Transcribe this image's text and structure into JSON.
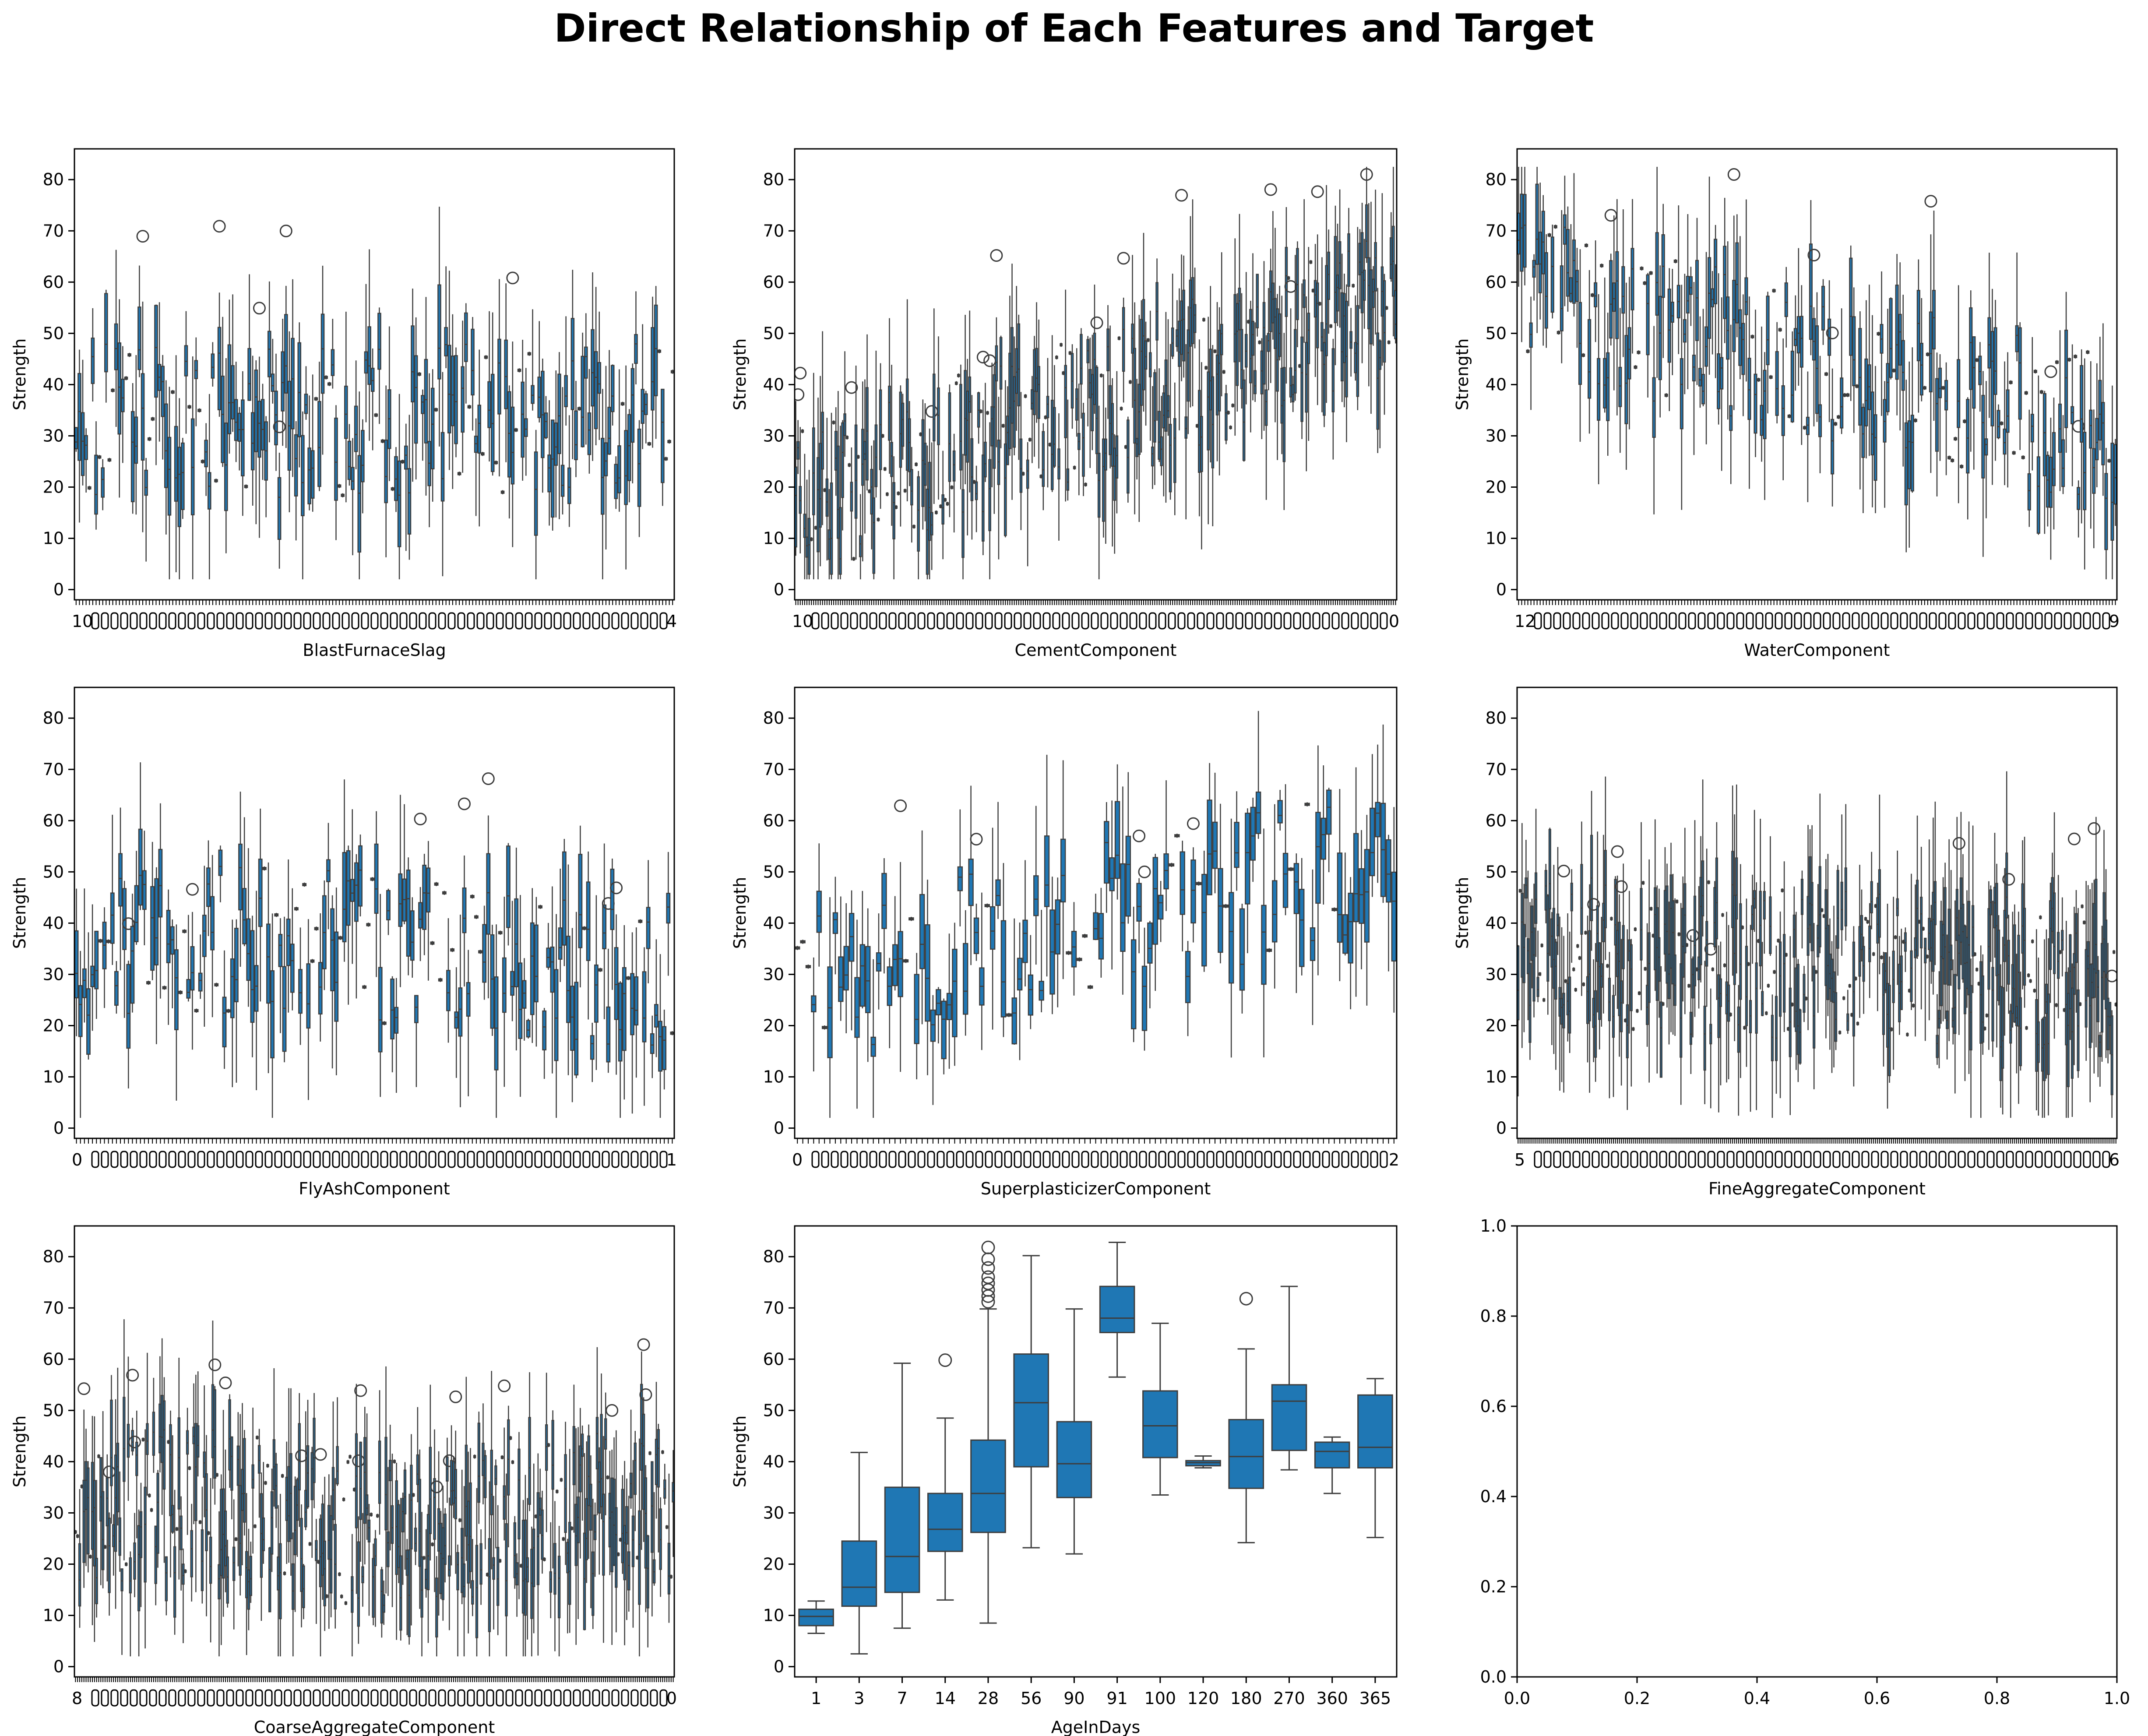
{
  "figure": {
    "title": "Direct Relationship of Each Features and Target",
    "box_color": "#1f77b4",
    "edge_color": "#3d3d3d"
  },
  "chart_data": [
    {
      "type": "box",
      "title": "",
      "xlabel": "BlastFurnaceSlag",
      "ylabel": "Strength",
      "ylim": [
        -2,
        86
      ],
      "yticks": [
        0,
        10,
        20,
        30,
        40,
        50,
        60,
        70,
        80
      ],
      "category_count": 180,
      "tick_labels_overlapping": true,
      "visible_tick_text_left": "10",
      "visible_tick_text_right": "4",
      "trend": "no clear trend; wide scatter 5-80"
    },
    {
      "type": "box",
      "title": "",
      "xlabel": "CementComponent",
      "ylabel": "Strength",
      "ylim": [
        -2,
        86
      ],
      "yticks": [
        0,
        10,
        20,
        30,
        40,
        50,
        60,
        70,
        80
      ],
      "category_count": 270,
      "tick_labels_overlapping": true,
      "visible_tick_text_left": "10",
      "visible_tick_text_right": "0",
      "trend": "increasing: medians rise from ~15 to ~55"
    },
    {
      "type": "box",
      "title": "",
      "xlabel": "WaterComponent",
      "ylabel": "Strength",
      "ylim": [
        -2,
        86
      ],
      "yticks": [
        0,
        10,
        20,
        30,
        40,
        50,
        60,
        70,
        80
      ],
      "category_count": 195,
      "tick_labels_overlapping": true,
      "visible_tick_text_left": "12",
      "visible_tick_text_right": "9",
      "trend": "decreasing: medians fall from ~60 to ~30"
    },
    {
      "type": "box",
      "title": "",
      "xlabel": "FlyAshComponent",
      "ylabel": "Strength",
      "ylim": [
        -2,
        86
      ],
      "yticks": [
        0,
        10,
        20,
        30,
        40,
        50,
        60,
        70,
        80
      ],
      "category_count": 150,
      "tick_labels_overlapping": true,
      "visible_tick_text_left": "0",
      "visible_tick_text_right": "1",
      "trend": "no clear trend; mostly 15-55"
    },
    {
      "type": "box",
      "title": "",
      "xlabel": "SuperplasticizerComponent",
      "ylabel": "Strength",
      "ylim": [
        -2,
        86
      ],
      "yticks": [
        0,
        10,
        20,
        30,
        40,
        50,
        60,
        70,
        80
      ],
      "category_count": 111,
      "tick_labels_overlapping": true,
      "visible_tick_text_left": "0",
      "visible_tick_text_right": "2",
      "trend": "slightly increasing: medians ~25 to ~55"
    },
    {
      "type": "box",
      "title": "",
      "xlabel": "FineAggregateComponent",
      "ylabel": "Strength",
      "ylim": [
        -2,
        86
      ],
      "yticks": [
        0,
        10,
        20,
        30,
        40,
        50,
        60,
        70,
        80
      ],
      "category_count": 302,
      "tick_labels_overlapping": true,
      "visible_tick_text_left": "5",
      "visible_tick_text_right": "6",
      "trend": "slightly decreasing; wide scatter"
    },
    {
      "type": "box",
      "title": "",
      "xlabel": "CoarseAggregateComponent",
      "ylabel": "Strength",
      "ylim": [
        -2,
        86
      ],
      "yticks": [
        0,
        10,
        20,
        30,
        40,
        50,
        60,
        70,
        80
      ],
      "category_count": 284,
      "tick_labels_overlapping": true,
      "visible_tick_text_left": "8",
      "visible_tick_text_right": "0",
      "trend": "no clear trend; mostly 10-50"
    },
    {
      "type": "box",
      "title": "",
      "xlabel": "AgeInDays",
      "ylabel": "Strength",
      "ylim": [
        -2,
        86
      ],
      "yticks": [
        0,
        10,
        20,
        30,
        40,
        50,
        60,
        70,
        80
      ],
      "categories": [
        "1",
        "3",
        "7",
        "14",
        "28",
        "56",
        "90",
        "91",
        "100",
        "120",
        "180",
        "270",
        "360",
        "365"
      ],
      "boxes": [
        {
          "min": 6.5,
          "q1": 8,
          "median": 9.8,
          "q3": 11.2,
          "max": 12.8,
          "outliers": []
        },
        {
          "min": 2.5,
          "q1": 11.8,
          "median": 15.5,
          "q3": 24.5,
          "max": 41.8,
          "outliers": []
        },
        {
          "min": 7.5,
          "q1": 14.5,
          "median": 21.5,
          "q3": 35,
          "max": 59.2,
          "outliers": []
        },
        {
          "min": 13,
          "q1": 22.5,
          "median": 26.8,
          "q3": 33.8,
          "max": 48.5,
          "outliers": [
            59.8
          ]
        },
        {
          "min": 8.5,
          "q1": 26.2,
          "median": 33.8,
          "q3": 44.2,
          "max": 69.8,
          "outliers": [
            71.2,
            72.3,
            73.5,
            74.8,
            76,
            77.8,
            79.5,
            81.8
          ]
        },
        {
          "min": 23.2,
          "q1": 39,
          "median": 51.5,
          "q3": 61,
          "max": 80.2,
          "outliers": []
        },
        {
          "min": 22,
          "q1": 33,
          "median": 39.6,
          "q3": 47.8,
          "max": 69.8,
          "outliers": []
        },
        {
          "min": 56.5,
          "q1": 65.2,
          "median": 68,
          "q3": 74.2,
          "max": 82.8,
          "outliers": []
        },
        {
          "min": 33.5,
          "q1": 40.8,
          "median": 47,
          "q3": 53.8,
          "max": 67,
          "outliers": []
        },
        {
          "min": 38.8,
          "q1": 39.2,
          "median": 39.8,
          "q3": 40.2,
          "max": 41.1,
          "outliers": []
        },
        {
          "min": 24.2,
          "q1": 34.8,
          "median": 41,
          "q3": 48.2,
          "max": 62,
          "outliers": [
            71.8
          ]
        },
        {
          "min": 38.4,
          "q1": 42.2,
          "median": 51.8,
          "q3": 55,
          "max": 74.2,
          "outliers": []
        },
        {
          "min": 33.8,
          "q1": 38.8,
          "median": 42,
          "q3": 43.8,
          "max": 44.8,
          "outliers": []
        },
        {
          "min": 25.2,
          "q1": 38.8,
          "median": 42.8,
          "q3": 53,
          "max": 56.2,
          "outliers": []
        }
      ]
    },
    {
      "type": "empty",
      "title": "",
      "xlabel": "",
      "ylabel": "",
      "xlim": [
        0,
        1
      ],
      "ylim": [
        0,
        1
      ],
      "xticks": [
        "0.0",
        "0.2",
        "0.4",
        "0.6",
        "0.8",
        "1.0"
      ],
      "yticks": [
        "0.0",
        "0.2",
        "0.4",
        "0.6",
        "0.8",
        "1.0"
      ]
    }
  ]
}
